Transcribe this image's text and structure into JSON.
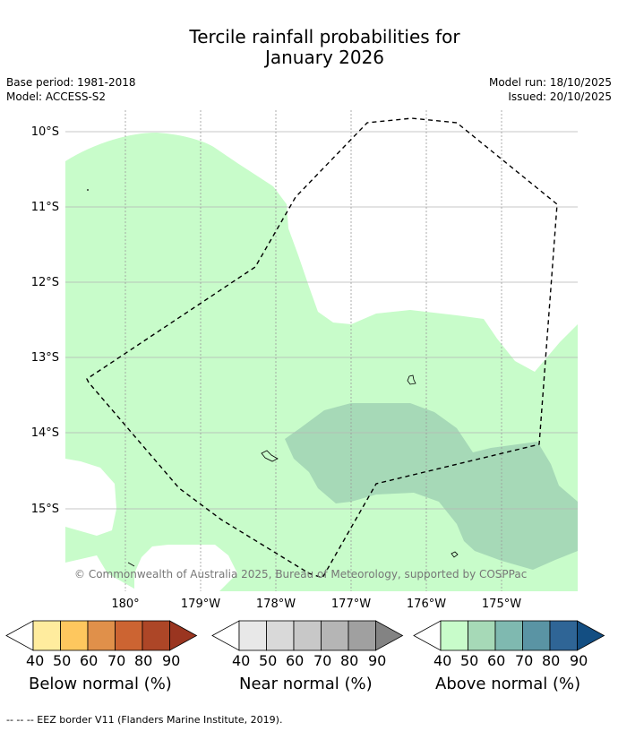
{
  "title": {
    "line1": "Tercile rainfall probabilities for",
    "line2": "January 2026"
  },
  "meta": {
    "base_period": "Base period: 1981-2018",
    "model": "Model: ACCESS-S2",
    "model_run": "Model run: 18/10/2025",
    "issued": "Issued: 20/10/2025"
  },
  "map": {
    "lat_labels": [
      "10°S",
      "11°S",
      "12°S",
      "13°S",
      "14°S",
      "15°S"
    ],
    "lon_labels": [
      "180°",
      "179°W",
      "178°W",
      "177°W",
      "176°W",
      "175°W"
    ],
    "copyright": "© Commonwealth of Australia 2025, Bureau of Meteorology, supported by COSPPac",
    "regions": [
      {
        "category": "above",
        "band": "40-50"
      },
      {
        "category": "above",
        "band": "50-60"
      }
    ]
  },
  "colorbars": [
    {
      "caption": "Below normal (%)",
      "ticks": [
        "40",
        "50",
        "60",
        "70",
        "80",
        "90"
      ],
      "colors": [
        "#ffffff",
        "#ffec9e",
        "#fec75e",
        "#e0904a",
        "#cc6432",
        "#ad4627",
        "#9a3520"
      ]
    },
    {
      "caption": "Near normal (%)",
      "ticks": [
        "40",
        "50",
        "60",
        "70",
        "80",
        "90"
      ],
      "colors": [
        "#ffffff",
        "#e8e8e8",
        "#d9d9d9",
        "#c8c8c8",
        "#b5b5b5",
        "#a0a0a0",
        "#838383"
      ]
    },
    {
      "caption": "Above normal (%)",
      "ticks": [
        "40",
        "50",
        "60",
        "70",
        "80",
        "90"
      ],
      "colors": [
        "#ffffff",
        "#c8fcca",
        "#a6d9b7",
        "#7fb9b0",
        "#5a94a4",
        "#2f6596",
        "#134e82"
      ]
    }
  ],
  "footnote": "--  --  -- EEZ border V11 (Flanders Marine Institute, 2019)."
}
